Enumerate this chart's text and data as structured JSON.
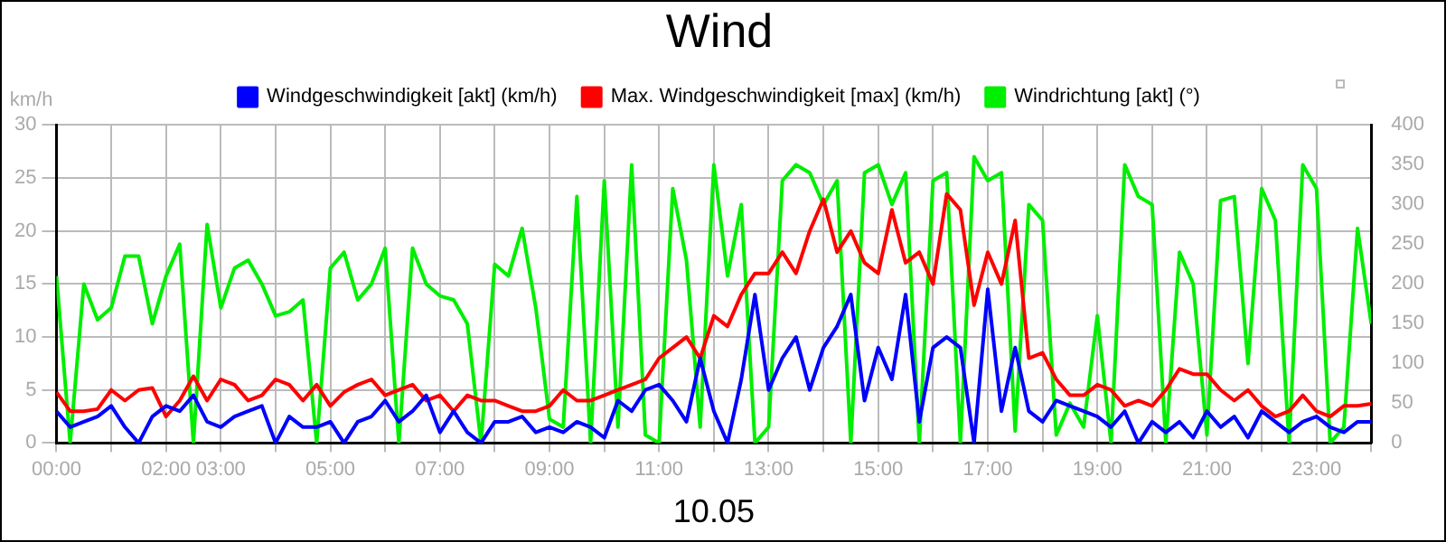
{
  "chart_data": {
    "type": "line",
    "title": "Wind",
    "xlabel": "10.05",
    "ylabel": "km/h",
    "x": [
      0,
      0.25,
      0.5,
      0.75,
      1,
      1.25,
      1.5,
      1.75,
      2,
      2.25,
      2.5,
      2.75,
      3,
      3.25,
      3.5,
      3.75,
      4,
      4.25,
      4.5,
      4.75,
      5,
      5.25,
      5.5,
      5.75,
      6,
      6.25,
      6.5,
      6.75,
      7,
      7.25,
      7.5,
      7.75,
      8,
      8.25,
      8.5,
      8.75,
      9,
      9.25,
      9.5,
      9.75,
      10,
      10.25,
      10.5,
      10.75,
      11,
      11.25,
      11.5,
      11.75,
      12,
      12.25,
      12.5,
      12.75,
      13,
      13.25,
      13.5,
      13.75,
      14,
      14.25,
      14.5,
      14.75,
      15,
      15.25,
      15.5,
      15.75,
      16,
      16.25,
      16.5,
      16.75,
      17,
      17.25,
      17.5,
      17.75,
      18,
      18.25,
      18.5,
      18.75,
      19,
      19.25,
      19.5,
      19.75,
      20,
      20.25,
      20.5,
      20.75,
      21,
      21.25,
      21.5,
      21.75,
      22,
      22.25,
      22.5,
      22.75,
      23,
      23.25,
      23.5,
      23.75,
      24
    ],
    "series": [
      {
        "name": "Windgeschwindigkeit [akt] (km/h)",
        "color": "#0000ff",
        "values": [
          3,
          1.5,
          2,
          2.5,
          3.5,
          1.5,
          0,
          2.5,
          3.5,
          3,
          4.5,
          2,
          1.5,
          2.5,
          3,
          3.5,
          0,
          2.5,
          1.5,
          1.5,
          2,
          0,
          2,
          2.5,
          4,
          2,
          3,
          4.5,
          1,
          3,
          1,
          0,
          2,
          2,
          2.5,
          1,
          1.5,
          1,
          2,
          1.5,
          0.5,
          4,
          3,
          5,
          5.5,
          4,
          2,
          8,
          3,
          0,
          6,
          14,
          5,
          8,
          10,
          5,
          9,
          11,
          14,
          4,
          9,
          6,
          14,
          2,
          9,
          10,
          9,
          0,
          14.5,
          3,
          9,
          3,
          2,
          4,
          3.5,
          3,
          2.5,
          1.5,
          3,
          0,
          2,
          1,
          2,
          0.5,
          3,
          1.5,
          2.5,
          0.5,
          3,
          2,
          1,
          2,
          2.5,
          1.5,
          1,
          2,
          2
        ]
      },
      {
        "name": "Max. Windgeschwindigkeit [max] (km/h)",
        "color": "#ff0000",
        "values": [
          4.8,
          3,
          3,
          3.2,
          5,
          4,
          5,
          5.2,
          2.5,
          4,
          6.3,
          4,
          6,
          5.5,
          4,
          4.5,
          6,
          5.5,
          4,
          5.5,
          3.5,
          4.8,
          5.5,
          6,
          4.5,
          5,
          5.5,
          4,
          4.5,
          3,
          4.5,
          4,
          4,
          3.5,
          3,
          3,
          3.5,
          5,
          4,
          4,
          4.5,
          5,
          5.5,
          6,
          8,
          9,
          10,
          8,
          12,
          11,
          14,
          16,
          16,
          18,
          16,
          20,
          23,
          18,
          20,
          17,
          16,
          22,
          17,
          18,
          15,
          23.5,
          22,
          13,
          18,
          15,
          21,
          8,
          8.5,
          6,
          4.5,
          4.5,
          5.5,
          5,
          3.5,
          4,
          3.5,
          5,
          7,
          6.5,
          6.5,
          5,
          4,
          5,
          3.5,
          2.5,
          3,
          4.5,
          3,
          2.5,
          3.5,
          3.5,
          3.7
        ]
      },
      {
        "name": "Windrichtung [akt] (°)",
        "color": "#00ee00",
        "axis": "y2",
        "values": [
          210,
          0,
          200,
          155,
          170,
          235,
          235,
          150,
          210,
          250,
          0,
          275,
          170,
          220,
          230,
          200,
          160,
          165,
          180,
          0,
          220,
          240,
          180,
          200,
          245,
          0,
          245,
          200,
          185,
          180,
          150,
          0,
          225,
          210,
          270,
          170,
          30,
          20,
          310,
          0,
          330,
          20,
          350,
          10,
          0,
          320,
          230,
          20,
          350,
          210,
          300,
          0,
          20,
          330,
          350,
          340,
          300,
          330,
          0,
          340,
          350,
          300,
          340,
          0,
          330,
          340,
          0,
          360,
          330,
          340,
          15,
          300,
          280,
          10,
          50,
          20,
          160,
          0,
          350,
          310,
          300,
          0,
          240,
          200,
          10,
          305,
          310,
          100,
          320,
          280,
          0,
          350,
          320,
          0,
          20,
          270,
          150
        ]
      }
    ],
    "xlim": [
      0,
      24
    ],
    "xticks": [
      {
        "value": 0,
        "label": "00:00"
      },
      {
        "value": 1,
        "label": null
      },
      {
        "value": 2,
        "label": "02:00"
      },
      {
        "value": 3,
        "label": "03:00"
      },
      {
        "value": 4,
        "label": null
      },
      {
        "value": 5,
        "label": "05:00"
      },
      {
        "value": 6,
        "label": null
      },
      {
        "value": 7,
        "label": "07:00"
      },
      {
        "value": 8,
        "label": null
      },
      {
        "value": 9,
        "label": "09:00"
      },
      {
        "value": 10,
        "label": null
      },
      {
        "value": 11,
        "label": "11:00"
      },
      {
        "value": 12,
        "label": null
      },
      {
        "value": 13,
        "label": "13:00"
      },
      {
        "value": 14,
        "label": null
      },
      {
        "value": 15,
        "label": "15:00"
      },
      {
        "value": 16,
        "label": null
      },
      {
        "value": 17,
        "label": "17:00"
      },
      {
        "value": 18,
        "label": null
      },
      {
        "value": 19,
        "label": "19:00"
      },
      {
        "value": 20,
        "label": null
      },
      {
        "value": 21,
        "label": "21:00"
      },
      {
        "value": 22,
        "label": null
      },
      {
        "value": 23,
        "label": "23:00"
      },
      {
        "value": 24,
        "label": null
      }
    ],
    "ylim": [
      0,
      30
    ],
    "yticks": [
      0,
      5,
      10,
      15,
      20,
      25,
      30
    ],
    "y2lim": [
      0,
      400
    ],
    "y2ticks": [
      0,
      50,
      100,
      150,
      200,
      250,
      300,
      350,
      400
    ],
    "grid": true,
    "legend": "top",
    "marker": "none",
    "line_style": "solid"
  }
}
